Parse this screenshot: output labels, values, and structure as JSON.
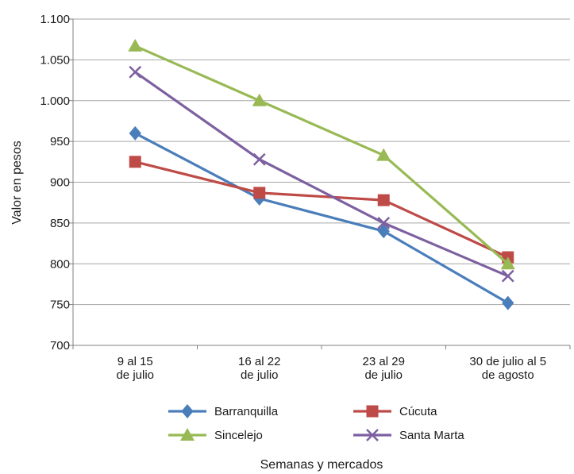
{
  "chart_data": {
    "type": "line",
    "categories": [
      [
        "9 al 15",
        "de julio"
      ],
      [
        "16 al 22",
        "de julio"
      ],
      [
        "23 al 29",
        "de julio"
      ],
      [
        "30 de julio al 5",
        "de agosto"
      ]
    ],
    "series": [
      {
        "name": "Barranquilla",
        "values": [
          960,
          880,
          840,
          752
        ],
        "color": "#4a7ebb",
        "marker": "diamond"
      },
      {
        "name": "Cúcuta",
        "values": [
          925,
          887,
          878,
          808
        ],
        "color": "#be4b48",
        "marker": "square"
      },
      {
        "name": "Sincelejo",
        "values": [
          1067,
          1000,
          933,
          800
        ],
        "color": "#98b954",
        "marker": "triangle"
      },
      {
        "name": "Santa Marta",
        "values": [
          1035,
          928,
          850,
          785
        ],
        "color": "#7d60a0",
        "marker": "x"
      }
    ],
    "ylabel": "Valor en pesos",
    "xlabel": "Semanas y mercados",
    "ylim": [
      700,
      1100
    ],
    "yticks": [
      700,
      750,
      800,
      850,
      900,
      950,
      1000,
      1050,
      1100
    ],
    "ytick_labels": [
      "700",
      "750",
      "800",
      "850",
      "900",
      "950",
      "1.000",
      "1.050",
      "1.100"
    ],
    "grid": true,
    "legend_position": "bottom"
  }
}
